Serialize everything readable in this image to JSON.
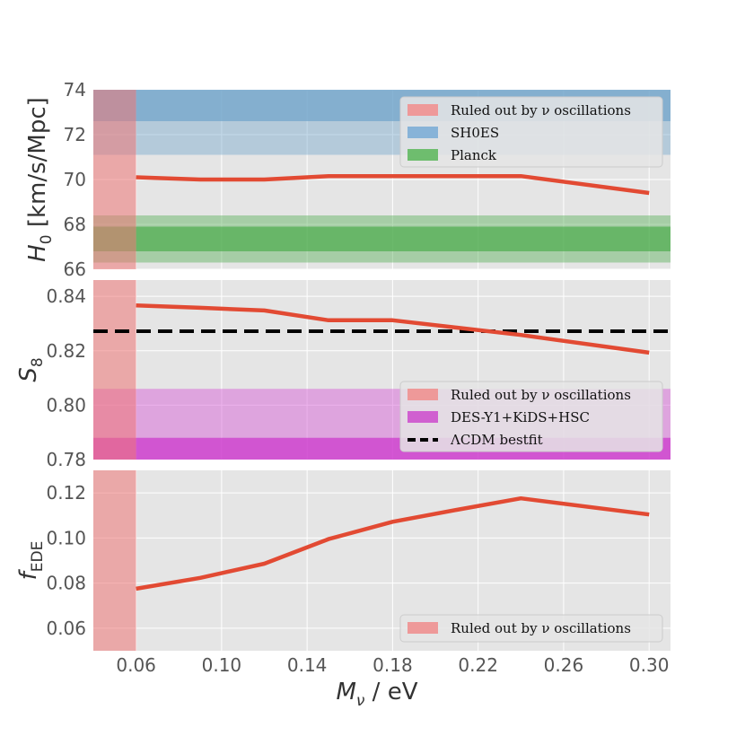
{
  "chart_data": [
    {
      "type": "line",
      "xlabel": "M_ν / eV",
      "ylabel": "H_0 [km/s/Mpc]",
      "xlim": [
        0.04,
        0.31
      ],
      "ylim": [
        66,
        74
      ],
      "yticks": [
        "66",
        "68",
        "70",
        "72",
        "74"
      ],
      "grid": true,
      "series": [
        {
          "x": [
            0.06,
            0.09,
            0.12,
            0.15,
            0.18,
            0.21,
            0.24,
            0.3
          ],
          "y": [
            70.1,
            70.0,
            70.0,
            70.15,
            70.15,
            70.15,
            70.15,
            69.4
          ],
          "color": "#e24a33"
        }
      ],
      "bands": [
        {
          "kind": "x",
          "range": [
            0.04,
            0.06
          ],
          "color": "#ee7777",
          "opacity": 0.55,
          "legend": "Ruled out by ν oscillations"
        },
        {
          "kind": "y",
          "range": [
            71.1,
            74.0
          ],
          "color": "#6fa4cb",
          "opacity": 0.42
        },
        {
          "kind": "y",
          "range": [
            72.6,
            74.0
          ],
          "color": "#6fa4cb",
          "opacity": 0.7,
          "legend": "SH0ES"
        },
        {
          "kind": "y",
          "range": [
            66.3,
            68.4
          ],
          "color": "#4fac4f",
          "opacity": 0.42
        },
        {
          "kind": "y",
          "range": [
            66.8,
            67.9
          ],
          "color": "#4fac4f",
          "opacity": 0.7,
          "legend": "Planck"
        }
      ],
      "legend": {
        "position": "top-right",
        "items": [
          {
            "label": "Ruled out by ν oscillations",
            "color": "#ee9999",
            "kind": "patch"
          },
          {
            "label": "SH0ES",
            "color": "#87b3d8",
            "kind": "patch"
          },
          {
            "label": "Planck",
            "color": "#6ebd6e",
            "kind": "patch"
          }
        ]
      }
    },
    {
      "type": "line",
      "xlabel": "M_ν / eV",
      "ylabel": "S_8",
      "xlim": [
        0.04,
        0.31
      ],
      "ylim": [
        0.78,
        0.846
      ],
      "yticks": [
        "0.78",
        "0.80",
        "0.82",
        "0.84"
      ],
      "grid": true,
      "series": [
        {
          "x": [
            0.06,
            0.09,
            0.12,
            0.15,
            0.18,
            0.21,
            0.24,
            0.3
          ],
          "y": [
            0.8367,
            0.8358,
            0.8348,
            0.8312,
            0.8312,
            0.8285,
            0.8258,
            0.8193
          ],
          "color": "#e24a33"
        }
      ],
      "hlines": [
        {
          "y": 0.8272,
          "color": "#000000",
          "dash": true,
          "legend": "ΛCDM bestfit"
        }
      ],
      "bands": [
        {
          "kind": "x",
          "range": [
            0.04,
            0.06
          ],
          "color": "#ee7777",
          "opacity": 0.55,
          "legend": "Ruled out by ν oscillations"
        },
        {
          "kind": "y",
          "range": [
            0.78,
            0.806
          ],
          "color": "#d455d4",
          "opacity": 0.45
        },
        {
          "kind": "y",
          "range": [
            0.78,
            0.788
          ],
          "color": "#cc33cc",
          "opacity": 0.7,
          "legend": "DES-Y1+KiDS+HSC"
        }
      ],
      "legend": {
        "position": "lower-right",
        "items": [
          {
            "label": "Ruled out by ν oscillations",
            "color": "#ee9999",
            "kind": "patch"
          },
          {
            "label": "DES-Y1+KiDS+HSC",
            "color": "#d060d0",
            "kind": "patch"
          },
          {
            "label": "ΛCDM bestfit",
            "color": "#000000",
            "kind": "dash"
          }
        ]
      }
    },
    {
      "type": "line",
      "xlabel": "M_ν / eV",
      "ylabel": "f_EDE",
      "xlim": [
        0.04,
        0.31
      ],
      "ylim": [
        0.05,
        0.13
      ],
      "xticks": [
        "0.06",
        "0.10",
        "0.14",
        "0.18",
        "0.22",
        "0.26",
        "0.30"
      ],
      "yticks": [
        "0.06",
        "0.08",
        "0.10",
        "0.12"
      ],
      "grid": true,
      "series": [
        {
          "x": [
            0.06,
            0.09,
            0.12,
            0.15,
            0.18,
            0.21,
            0.24,
            0.3
          ],
          "y": [
            0.0775,
            0.0823,
            0.0886,
            0.0995,
            0.1072,
            0.1125,
            0.1176,
            0.1104
          ],
          "color": "#e24a33"
        }
      ],
      "bands": [
        {
          "kind": "x",
          "range": [
            0.04,
            0.06
          ],
          "color": "#ee7777",
          "opacity": 0.55,
          "legend": "Ruled out by ν oscillations"
        }
      ],
      "legend": {
        "position": "lower-right",
        "items": [
          {
            "label": "Ruled out by ν oscillations",
            "color": "#ee9999",
            "kind": "patch"
          }
        ]
      }
    }
  ]
}
